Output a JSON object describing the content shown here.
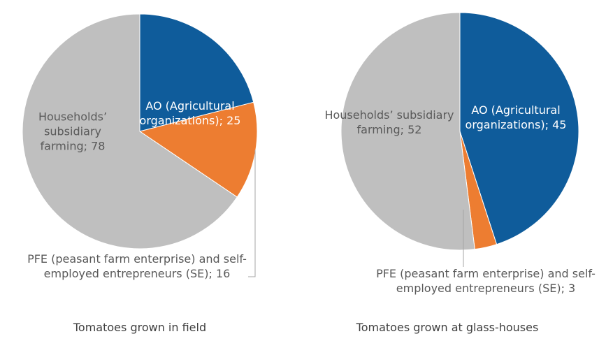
{
  "chart_data": [
    {
      "type": "pie",
      "title": "Tomatoes grown in field",
      "categories": [
        "AO (Agricultural organizations)",
        "PFE (peasant farm enterprise) and self-employed entrepreneurs (SE)",
        "Households’ subsidiary farming"
      ],
      "values": [
        25,
        16,
        78
      ],
      "value_labels": [
        "AO (Agricultural organizations); 25",
        "PFE (peasant farm enterprise) and self-employed entrepreneurs (SE); 16",
        "Households’ subsidiary farming; 78"
      ],
      "colors": [
        "#0f5c9b",
        "#ed7d31",
        "#bfbfbf"
      ]
    },
    {
      "type": "pie",
      "title": "Tomatoes grown at glass-houses",
      "categories": [
        "AO (Agricultural organizations)",
        "PFE (peasant farm enterprise) and self-employed entrepreneurs (SE)",
        "Households’ subsidiary farming"
      ],
      "values": [
        45,
        3,
        52
      ],
      "value_labels": [
        "AO (Agricultural organizations); 45",
        "PFE (peasant farm enterprise) and self-employed entrepreneurs (SE); 3",
        "Households’ subsidiary farming; 52"
      ],
      "colors": [
        "#0f5c9b",
        "#ed7d31",
        "#bfbfbf"
      ]
    }
  ]
}
